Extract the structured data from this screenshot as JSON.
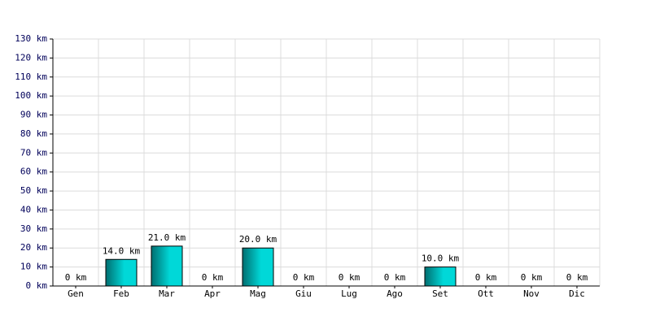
{
  "chart_data": {
    "type": "bar",
    "categories": [
      "Gen",
      "Feb",
      "Mar",
      "Apr",
      "Mag",
      "Giu",
      "Lug",
      "Ago",
      "Set",
      "Ott",
      "Nov",
      "Dic"
    ],
    "values": [
      0,
      14,
      21,
      0,
      20,
      0,
      0,
      0,
      10,
      0,
      0,
      0
    ],
    "value_labels": [
      "0 km",
      "14.0 km",
      "21.0 km",
      "0 km",
      "20.0 km",
      "0 km",
      "0 km",
      "0 km",
      "10.0 km",
      "0 km",
      "0 km",
      "0 km"
    ],
    "color": "#00d8d8",
    "ylim": [
      0,
      130
    ],
    "yticks": [
      {
        "value": 0,
        "label": "0 km"
      },
      {
        "value": 10,
        "label": "10 km"
      },
      {
        "value": 20,
        "label": "20 km"
      },
      {
        "value": 30,
        "label": "30 km"
      },
      {
        "value": 40,
        "label": "40 km"
      },
      {
        "value": 50,
        "label": "50 km"
      },
      {
        "value": 60,
        "label": "60 km"
      },
      {
        "value": 70,
        "label": "70 km"
      },
      {
        "value": 80,
        "label": "80 km"
      },
      {
        "value": 90,
        "label": "90 km"
      },
      {
        "value": 100,
        "label": "100 km"
      },
      {
        "value": 110,
        "label": "110 km"
      },
      {
        "value": 120,
        "label": "120 km"
      },
      {
        "value": 130,
        "label": "130 km"
      }
    ],
    "grid": true
  }
}
